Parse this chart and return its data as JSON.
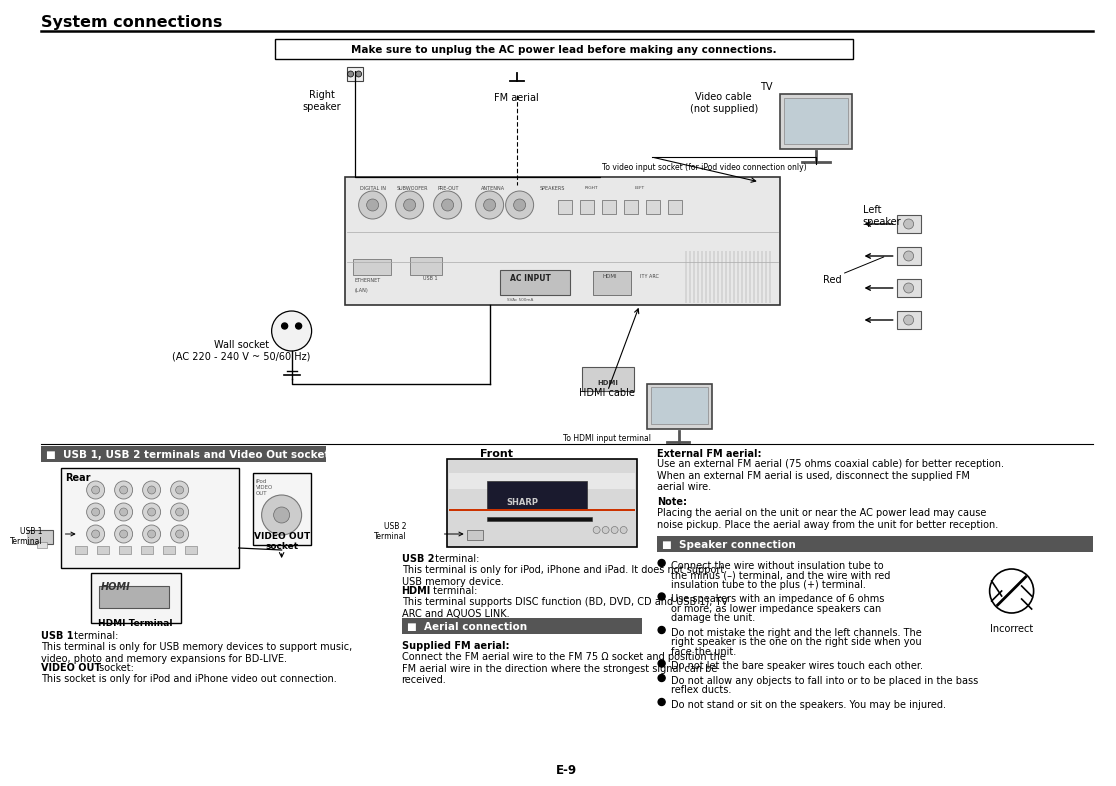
{
  "title": "System connections",
  "bg": "#ffffff",
  "warning": "Make sure to unplug the AC power lead before making any connections.",
  "page_num": "E-9",
  "hdr1": "■  USB 1, USB 2 terminals and Video Out socket",
  "hdr2": "■  Aerial connection",
  "hdr3": "■  Speaker connection",
  "hdr_bg": "#555555",
  "hdr_fg": "#ffffff",
  "lbl_right_spk": "Right\nspeaker",
  "lbl_fm": "FM aerial",
  "lbl_video_cable": "Video cable\n(not supplied)",
  "lbl_tv": "TV",
  "lbl_video_note": "To video input socket (for iPod video connection only)",
  "lbl_left_spk": "Left\nspeaker",
  "lbl_red": "Red",
  "lbl_wall": "Wall socket\n(AC 220 - 240 V ~ 50/60 Hz)",
  "lbl_hdmi_cable": "HDMI cable",
  "lbl_hdmi_input": "To HDMI input terminal",
  "lbl_rear": "Rear",
  "lbl_usb1_term": "USB 1\nTerminal",
  "lbl_vout": "VIDEO OUT\nsocket",
  "lbl_hdmi_term": "HDMI Terminal",
  "lbl_front": "Front",
  "lbl_usb2_term": "USB 2\nTerminal",
  "txt_usb1_b": "USB 1",
  "txt_usb1": " terminal:",
  "txt_usb1_2": "This terminal is only for USB memory devices to support music,\nvideo, photo and memory expansions for BD-LIVE.",
  "txt_vout_b": "VIDEO OUT",
  "txt_vout": " socket:",
  "txt_vout_2": "This socket is only for iPod and iPhone video out connection.",
  "txt_usb2_b": "USB 2",
  "txt_usb2": " terminal:",
  "txt_usb2_2": "This terminal is only for iPod, iPhone and iPad. It does not support\nUSB memory device.",
  "txt_hdmi_b": "HDMI",
  "txt_hdmi": " terminal:",
  "txt_hdmi_2": "This terminal supports DISC function (BD, DVD, CD and USB 1), TV\nARC and AQUOS LINK.",
  "txt_sfm_b": "Supplied FM aerial:",
  "txt_sfm": "Connect the FM aerial wire to the FM 75 Ω socket and position the\nFM aerial wire in the direction where the strongest signal can be\nreceived.",
  "txt_efm_b": "External FM aerial:",
  "txt_efm": "Use an external FM aerial (75 ohms coaxial cable) for better reception.\nWhen an external FM aerial is used, disconnect the supplied FM\naerial wire.",
  "txt_note_b": "Note:",
  "txt_note": "Placing the aerial on the unit or near the AC power lead may cause\nnoise pickup. Place the aerial away from the unit for better reception.",
  "spk1a": "Connect the wire without insulation tube to",
  "spk1b": "the minus (–) terminal, and the wire with red",
  "spk1c": "insulation tube to the plus (+) terminal.",
  "spk2a": "Use speakers with an impedance of 6 ohms",
  "spk2b": "or more, as lower impedance speakers can",
  "spk2c": "damage the unit.",
  "spk3a": "Do not mistake the right and the left channels. The",
  "spk3b": "right speaker is the one on the right side when you",
  "spk3c": "face the unit.",
  "spk4": "Do not let the bare speaker wires touch each other.",
  "spk5a": "Do not allow any objects to fall into or to be placed in the bass",
  "spk5b": "reflex ducts.",
  "spk6": "Do not stand or sit on the speakers. You may be injured.",
  "txt_incorrect": "Incorrect"
}
